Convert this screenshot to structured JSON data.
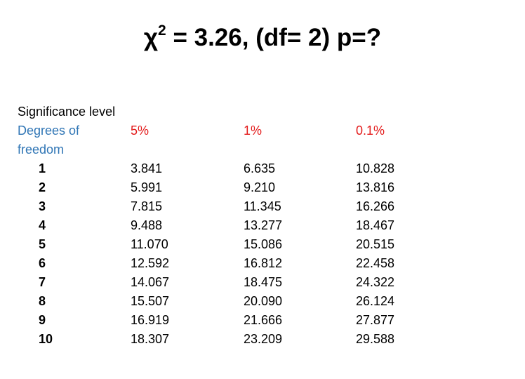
{
  "title": {
    "symbol": "χ",
    "exponent": "2",
    "rest": " = 3.26, (df= 2) p=?"
  },
  "table": {
    "caption": "Significance level",
    "df_label_line1": "Degrees of",
    "df_label_line2": "freedom",
    "levels": [
      "5%",
      "1%",
      "0.1%"
    ],
    "rows": [
      {
        "df": "1",
        "v5": "3.841",
        "v1": "6.635",
        "v01": "10.828"
      },
      {
        "df": "2",
        "v5": "5.991",
        "v1": "9.210",
        "v01": "13.816"
      },
      {
        "df": "3",
        "v5": "7.815",
        "v1": "11.345",
        "v01": "16.266"
      },
      {
        "df": "4",
        "v5": "9.488",
        "v1": "13.277",
        "v01": "18.467"
      },
      {
        "df": "5",
        "v5": "11.070",
        "v1": "15.086",
        "v01": "20.515"
      },
      {
        "df": "6",
        "v5": "12.592",
        "v1": "16.812",
        "v01": "22.458"
      },
      {
        "df": "7",
        "v5": "14.067",
        "v1": "18.475",
        "v01": "24.322"
      },
      {
        "df": "8",
        "v5": "15.507",
        "v1": "20.090",
        "v01": "26.124"
      },
      {
        "df": "9",
        "v5": "16.919",
        "v1": "21.666",
        "v01": "27.877"
      },
      {
        "df": "10",
        "v5": "18.307",
        "v1": "23.209",
        "v01": "29.588"
      }
    ]
  },
  "colors": {
    "header_blue": "#2f75b5",
    "level_red": "#e31b1b"
  }
}
